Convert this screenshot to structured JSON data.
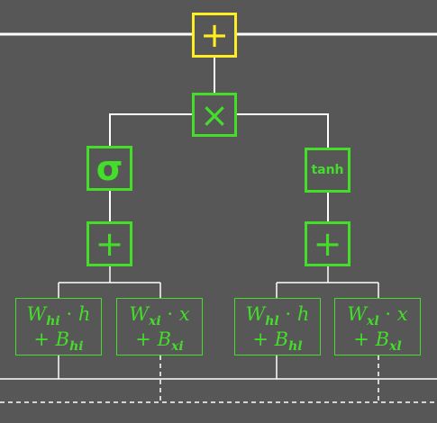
{
  "diagram": {
    "colors": {
      "background": "#575757",
      "node": "#44dd2a",
      "accent": "#ffee22",
      "wire": "#ffffff"
    },
    "nodes": {
      "top_add": {
        "symbol": "+"
      },
      "multiply": {
        "symbol": "×"
      },
      "sigmoid": {
        "symbol": "σ"
      },
      "tanh": {
        "symbol": "tanh"
      },
      "left_add": {
        "symbol": "+"
      },
      "right_add": {
        "symbol": "+"
      }
    },
    "formulas": [
      {
        "w": "W",
        "w_sub": "hi",
        "var": "h",
        "b": "B",
        "b_sub": "hi"
      },
      {
        "w": "W",
        "w_sub": "xi",
        "var": "x",
        "b": "B",
        "b_sub": "xi"
      },
      {
        "w": "W",
        "w_sub": "hl",
        "var": "h",
        "b": "B",
        "b_sub": "hl"
      },
      {
        "w": "W",
        "w_sub": "xl",
        "var": "x",
        "b": "B",
        "b_sub": "xl"
      }
    ],
    "dot": "·",
    "plus": "+"
  }
}
